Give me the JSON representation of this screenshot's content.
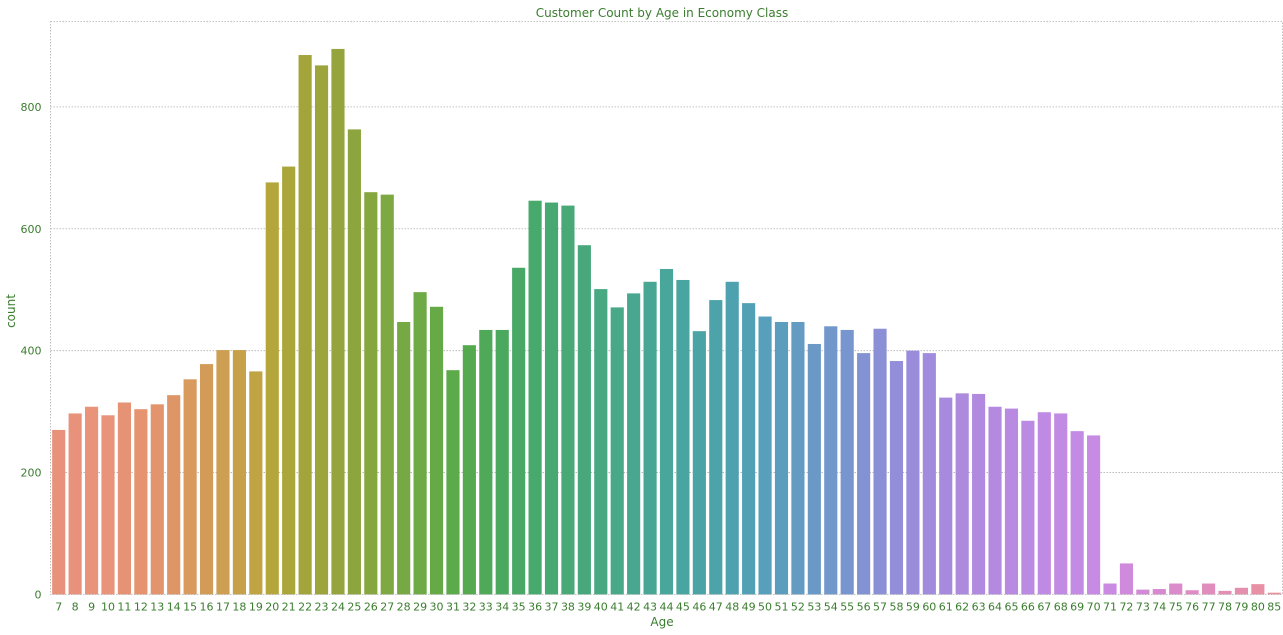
{
  "chart_data": {
    "type": "bar",
    "title": "Customer Count by Age in Economy Class",
    "xlabel": "Age",
    "ylabel": "count",
    "ylim": [
      0,
      940
    ],
    "yticks": [
      0,
      200,
      400,
      600,
      800
    ],
    "grid": true,
    "categories": [
      "7",
      "8",
      "9",
      "10",
      "11",
      "12",
      "13",
      "14",
      "15",
      "16",
      "17",
      "18",
      "19",
      "20",
      "21",
      "22",
      "23",
      "24",
      "25",
      "26",
      "27",
      "28",
      "29",
      "30",
      "31",
      "32",
      "33",
      "34",
      "35",
      "36",
      "37",
      "38",
      "39",
      "40",
      "41",
      "42",
      "43",
      "44",
      "45",
      "46",
      "47",
      "48",
      "49",
      "50",
      "51",
      "52",
      "53",
      "54",
      "55",
      "56",
      "57",
      "58",
      "59",
      "60",
      "61",
      "62",
      "63",
      "64",
      "65",
      "66",
      "67",
      "68",
      "69",
      "70",
      "71",
      "72",
      "73",
      "74",
      "75",
      "76",
      "77",
      "78",
      "79",
      "80",
      "85"
    ],
    "values": [
      270,
      297,
      308,
      294,
      315,
      304,
      312,
      327,
      353,
      378,
      401,
      401,
      366,
      676,
      702,
      885,
      868,
      895,
      763,
      660,
      656,
      447,
      496,
      472,
      368,
      409,
      434,
      434,
      536,
      646,
      643,
      638,
      573,
      501,
      471,
      494,
      513,
      534,
      516,
      432,
      483,
      513,
      478,
      456,
      447,
      447,
      411,
      440,
      434,
      396,
      436,
      383,
      400,
      396,
      323,
      330,
      329,
      308,
      305,
      285,
      299,
      297,
      268,
      261,
      18,
      51,
      8,
      9,
      18,
      7,
      18,
      6,
      11,
      17,
      3
    ],
    "colors": [
      "#e8927c",
      "#e8927c",
      "#e8937a",
      "#e8937a",
      "#e69375",
      "#e69470",
      "#e3946c",
      "#df9666",
      "#d89a5d",
      "#d29c58",
      "#cd9f52",
      "#c7a14a",
      "#c0a343",
      "#b5a63b",
      "#aba63a",
      "#a3a43a",
      "#9ca43b",
      "#95a43c",
      "#8da53e",
      "#86a740",
      "#7ea841",
      "#76a943",
      "#6eaa46",
      "#66aa48",
      "#5daa4b",
      "#55aa50",
      "#4fa958",
      "#4ba95f",
      "#49a866",
      "#48a96c",
      "#48a871",
      "#48a876",
      "#48a87c",
      "#48a882",
      "#48a888",
      "#48a78e",
      "#48a694",
      "#48a69a",
      "#49a59f",
      "#4aa4a5",
      "#4ca3aa",
      "#4ea2b0",
      "#52a0b5",
      "#579fba",
      "#5c9dbe",
      "#639bc3",
      "#6a99c7",
      "#7197cb",
      "#7995cf",
      "#8292d3",
      "#8b90d6",
      "#938ed9",
      "#9a8cdb",
      "#a18bdc",
      "#a78add",
      "#ad8ade",
      "#b18adf",
      "#b48ae0",
      "#b88ae1",
      "#bb8ae2",
      "#be8ae3",
      "#c18ae3",
      "#c48be4",
      "#c78be3",
      "#ca8ae1",
      "#cf8adc",
      "#d38ad6",
      "#d78ad0",
      "#db8bc9",
      "#de8cc3",
      "#e08dbc",
      "#e38eb5",
      "#e58fae",
      "#e790a6",
      "#e8929e"
    ]
  }
}
